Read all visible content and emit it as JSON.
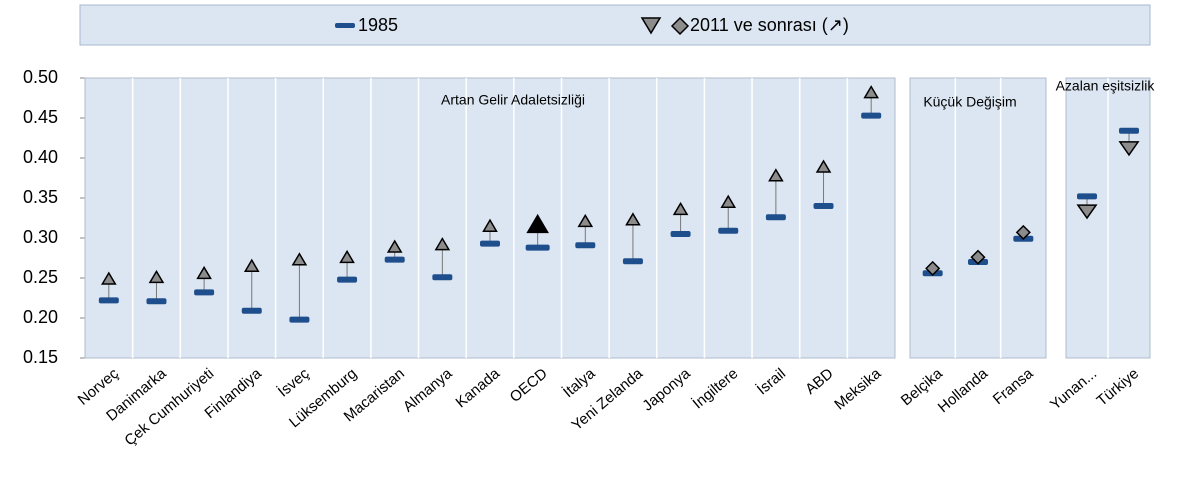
{
  "chart_data": [
    {
      "type": "dot",
      "annotation": "Artan Gelir Adaletsizliği",
      "categories": [
        "Norveç",
        "Danimarka",
        "Çek Cumhuriyeti",
        "Finlandiya",
        "İsveç",
        "Lüksemburg",
        "Macaristan",
        "Almanya",
        "Kanada",
        "OECD",
        "İtalya",
        "Yeni Zelanda",
        "Japonya",
        "İngiltere",
        "İsrail",
        "ABD",
        "Meksika"
      ],
      "highlight": "OECD",
      "series": [
        {
          "name": "1985",
          "color": "#1f4e8c",
          "marker": "dash",
          "values": [
            0.222,
            0.221,
            0.232,
            0.209,
            0.198,
            0.248,
            0.273,
            0.251,
            0.293,
            0.288,
            0.291,
            0.271,
            0.305,
            0.309,
            0.326,
            0.34,
            0.453
          ]
        },
        {
          "name": "2011 ve sonrası (↗)",
          "color": "#8c8c8c",
          "marker": "triangle-up",
          "values": [
            0.249,
            0.251,
            0.256,
            0.265,
            0.273,
            0.276,
            0.289,
            0.292,
            0.315,
            0.317,
            0.321,
            0.323,
            0.336,
            0.345,
            0.378,
            0.389,
            0.482
          ]
        }
      ],
      "ylim": [
        0.15,
        0.5
      ],
      "yticks": [
        {
          "value": 0.15,
          "label": "0.15"
        },
        {
          "value": 0.2,
          "label": "0.20"
        },
        {
          "value": 0.25,
          "label": "0.25"
        },
        {
          "value": 0.3,
          "label": "0.30"
        },
        {
          "value": 0.35,
          "label": "0.35"
        },
        {
          "value": 0.4,
          "label": "0.40"
        },
        {
          "value": 0.45,
          "label": "0.45"
        },
        {
          "value": 0.5,
          "label": "0.50"
        }
      ]
    },
    {
      "type": "dot",
      "annotation": "Küçük Değişim",
      "categories": [
        "Belçika",
        "Hollanda",
        "Fransa"
      ],
      "series": [
        {
          "color": "#1f4e8c",
          "marker": "dash",
          "values": [
            0.256,
            0.27,
            0.299
          ]
        },
        {
          "color": "#8c8c8c",
          "marker": "diamond",
          "values": [
            0.262,
            0.276,
            0.307
          ]
        }
      ],
      "ylim": [
        0.15,
        0.5
      ]
    },
    {
      "type": "dot",
      "annotation": "Azalan eşitsizlik",
      "categories": [
        "Yunan...",
        "Türkiye"
      ],
      "series": [
        {
          "color": "#1f4e8c",
          "marker": "dash",
          "values": [
            0.352,
            0.434
          ]
        },
        {
          "color": "#8c8c8c",
          "marker": "triangle-down",
          "values": [
            0.333,
            0.412
          ]
        }
      ],
      "ylim": [
        0.15,
        0.5
      ]
    }
  ]
}
